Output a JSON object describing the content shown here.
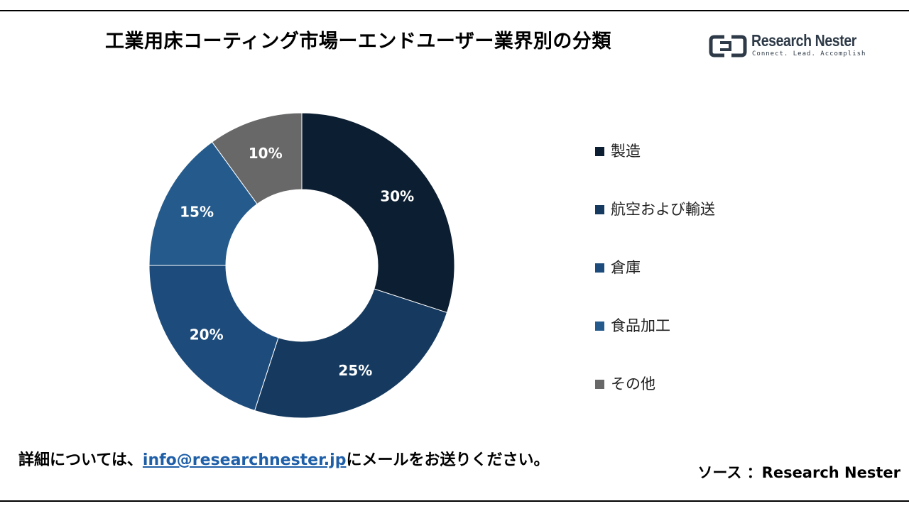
{
  "title": "工業用床コーティング市場ーエンドユーザー業界別の分類",
  "logo": {
    "name": "Research Nester",
    "tagline": "Connect. Lead. Accomplish"
  },
  "chart_data": {
    "type": "pie",
    "donut": true,
    "title": "工業用床コーティング市場ーエンドユーザー業界別の分類",
    "categories": [
      "製造",
      "航空および輸送",
      "倉庫",
      "食品加工",
      "その他"
    ],
    "values": [
      30,
      25,
      20,
      15,
      10
    ],
    "unit": "%",
    "data_labels": [
      "30%",
      "25%",
      "20%",
      "15%",
      "10%"
    ],
    "colors": [
      "#0c1e31",
      "#163a5f",
      "#1d4b7b",
      "#255b8c",
      "#686868"
    ],
    "legend_position": "right"
  },
  "footer": {
    "contact_prefix": "詳細については、",
    "email": "info@researchnester.jp",
    "contact_suffix": "にメールをお送りください。",
    "source": "ソース ：Research Nester"
  }
}
